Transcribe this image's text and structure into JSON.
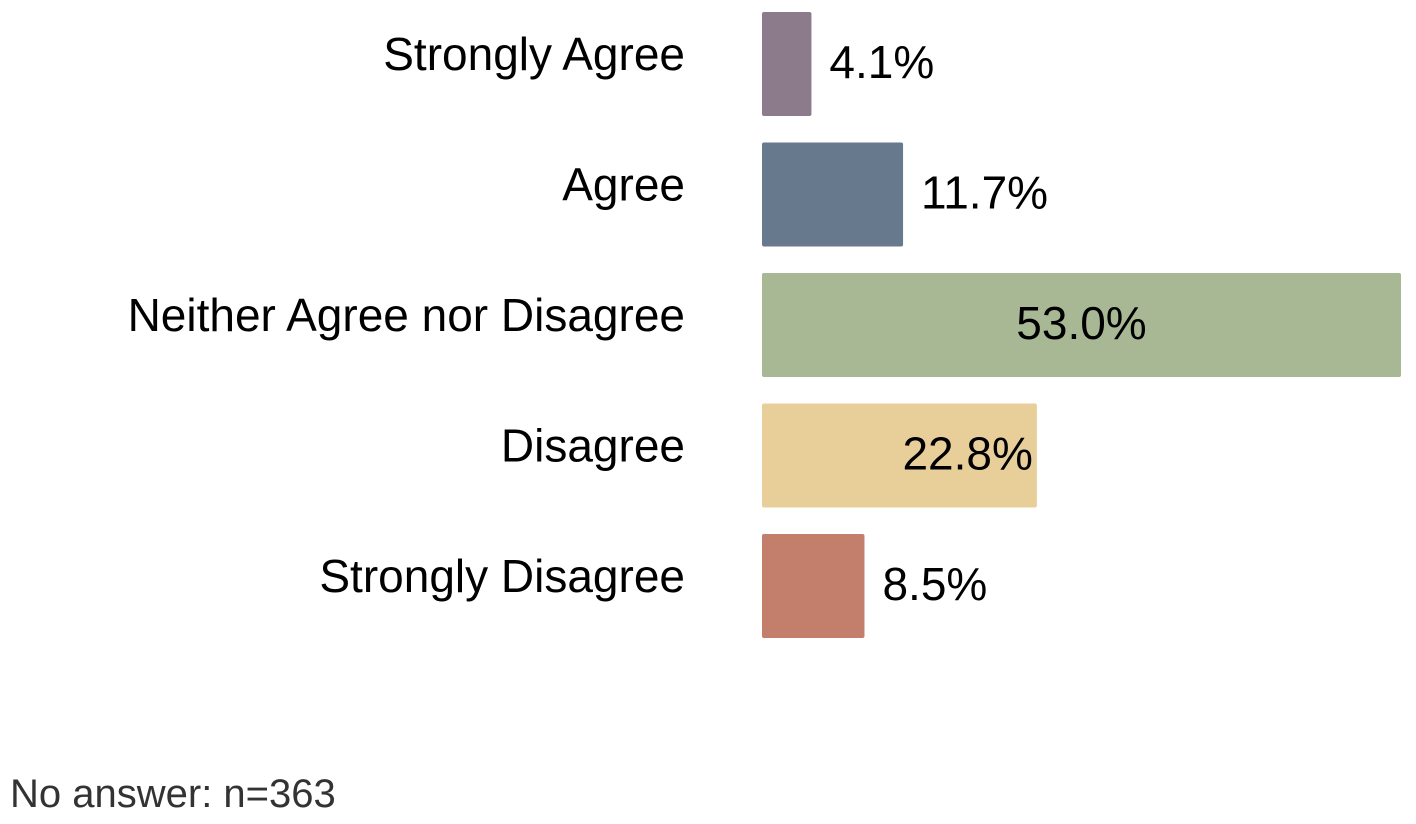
{
  "chart_data": {
    "type": "bar",
    "orientation": "horizontal",
    "categories": [
      "Strongly Agree",
      "Agree",
      "Neither Agree nor Disagree",
      "Disagree",
      "Strongly Disagree"
    ],
    "values": [
      4.1,
      11.7,
      53.0,
      22.8,
      8.5
    ],
    "value_labels": [
      "4.1%",
      "11.7%",
      "53.0%",
      "22.8%",
      "8.5%"
    ],
    "colors": [
      "#8b7b8b",
      "#67798c",
      "#a9b894",
      "#e8cf9a",
      "#c47e6c"
    ],
    "unit": "%",
    "xlim": [
      0,
      53
    ],
    "grid": false,
    "legend": "none",
    "title": "",
    "xlabel": "",
    "ylabel": ""
  },
  "footnote": "No answer: n=363"
}
